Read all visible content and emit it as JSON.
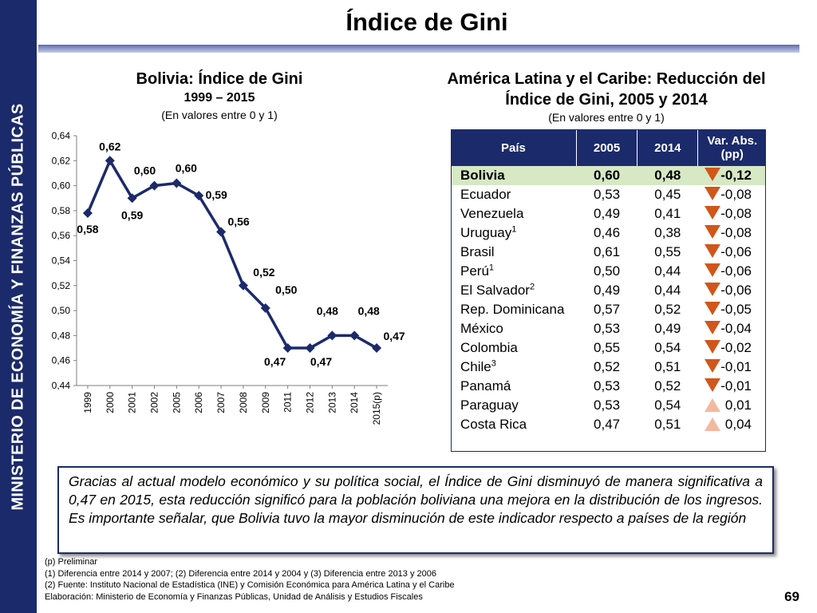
{
  "sidebar": {
    "text": "MINISTERIO DE ECONOMÍA Y FINANZAS PÚBLICAS"
  },
  "page": {
    "title": "Índice de Gini",
    "page_number": "69"
  },
  "chart_data": [
    {
      "type": "line",
      "title": "Bolivia: Índice de Gini",
      "subtitle": "1999 – 2015",
      "unit_note": "(En valores entre 0 y 1)",
      "categories": [
        "1999",
        "2000",
        "2001",
        "2002",
        "2005",
        "2006",
        "2007",
        "2008",
        "2009",
        "2011",
        "2012",
        "2013",
        "2014",
        "2015(p)"
      ],
      "values": [
        0.58,
        0.62,
        0.59,
        0.6,
        0.6,
        0.59,
        0.56,
        0.52,
        0.5,
        0.47,
        0.47,
        0.48,
        0.48,
        0.47
      ],
      "plotted_values": [
        0.578,
        0.62,
        0.59,
        0.6,
        0.602,
        0.592,
        0.563,
        0.52,
        0.502,
        0.47,
        0.47,
        0.48,
        0.48,
        0.47
      ],
      "data_labels": [
        "0,58",
        "0,62",
        "0,59",
        "0,60",
        "0,60",
        "0,59",
        "0,56",
        "0,52",
        "0,50",
        "0,47",
        "0,47",
        "0,48",
        "0,48",
        "0,47"
      ],
      "yticks": [
        "0,44",
        "0,46",
        "0,48",
        "0,50",
        "0,52",
        "0,54",
        "0,56",
        "0,58",
        "0,60",
        "0,62",
        "0,64"
      ],
      "ylim": [
        0.44,
        0.64
      ],
      "color": "#1b2a6b",
      "grid": false
    },
    {
      "type": "table",
      "title_line1": "América Latina y el Caribe: Reducción del",
      "title_line2": "Índice de Gini, 2005 y 2014",
      "unit_note": "(En valores entre 0 y 1)",
      "columns": [
        "País",
        "2005",
        "2014",
        "Var. Abs. (pp)"
      ],
      "rows": [
        {
          "pais": "Bolivia",
          "sup": "",
          "v2005": "0,60",
          "v2014": "0,48",
          "var": "-0,12",
          "dir": "down",
          "highlight": true
        },
        {
          "pais": "Ecuador",
          "sup": "",
          "v2005": "0,53",
          "v2014": "0,45",
          "var": "-0,08",
          "dir": "down",
          "highlight": false
        },
        {
          "pais": "Venezuela",
          "sup": "",
          "v2005": "0,49",
          "v2014": "0,41",
          "var": "-0,08",
          "dir": "down",
          "highlight": false
        },
        {
          "pais": "Uruguay",
          "sup": "1",
          "v2005": "0,46",
          "v2014": "0,38",
          "var": "-0,08",
          "dir": "down",
          "highlight": false
        },
        {
          "pais": "Brasil",
          "sup": "",
          "v2005": "0,61",
          "v2014": "0,55",
          "var": "-0,06",
          "dir": "down",
          "highlight": false
        },
        {
          "pais": "Perú",
          "sup": "1",
          "v2005": "0,50",
          "v2014": "0,44",
          "var": "-0,06",
          "dir": "down",
          "highlight": false
        },
        {
          "pais": "El Salvador",
          "sup": "2",
          "v2005": "0,49",
          "v2014": "0,44",
          "var": "-0,06",
          "dir": "down",
          "highlight": false
        },
        {
          "pais": "Rep. Dominicana",
          "sup": "",
          "v2005": "0,57",
          "v2014": "0,52",
          "var": "-0,05",
          "dir": "down",
          "highlight": false
        },
        {
          "pais": "México",
          "sup": "",
          "v2005": "0,53",
          "v2014": "0,49",
          "var": "-0,04",
          "dir": "down",
          "highlight": false
        },
        {
          "pais": "Colombia",
          "sup": "",
          "v2005": "0,55",
          "v2014": "0,54",
          "var": "-0,02",
          "dir": "down",
          "highlight": false
        },
        {
          "pais": "Chile",
          "sup": "3",
          "v2005": "0,52",
          "v2014": "0,51",
          "var": "-0,01",
          "dir": "down",
          "highlight": false
        },
        {
          "pais": "Panamá",
          "sup": "",
          "v2005": "0,53",
          "v2014": "0,52",
          "var": "-0,01",
          "dir": "down",
          "highlight": false
        },
        {
          "pais": "Paraguay",
          "sup": "",
          "v2005": "0,53",
          "v2014": "0,54",
          "var": "0,01",
          "dir": "up",
          "highlight": false
        },
        {
          "pais": "Costa Rica",
          "sup": "",
          "v2005": "0,47",
          "v2014": "0,51",
          "var": "0,04",
          "dir": "up",
          "highlight": false
        }
      ],
      "colors": {
        "header": "#1b2a6b",
        "highlight": "#d6e8c4",
        "down_arrow": "#d1561a",
        "up_arrow": "#f2b9a0"
      }
    }
  ],
  "note": "Gracias al actual modelo económico y su política social, el Índice de Gini disminuyó de manera significativa a 0,47 en 2015, esta reducción significó para la población boliviana una mejora en la distribución de los ingresos. Es importante señalar, que Bolivia tuvo la mayor disminución de este indicador respecto a países de la región",
  "footnotes": [
    "(p) Preliminar",
    "(1)   Diferencia entre 2014 y 2007; (2) Diferencia entre 2014 y 2004 y (3) Diferencia entre 2013 y 2006",
    "(2)   Fuente: Instituto Nacional de Estadística (INE) y Comisión Económica para América Latina y el Caribe",
    "Elaboración: Ministerio de Economía y Finanzas Públicas, Unidad de Análisis y Estudios Fiscales"
  ]
}
